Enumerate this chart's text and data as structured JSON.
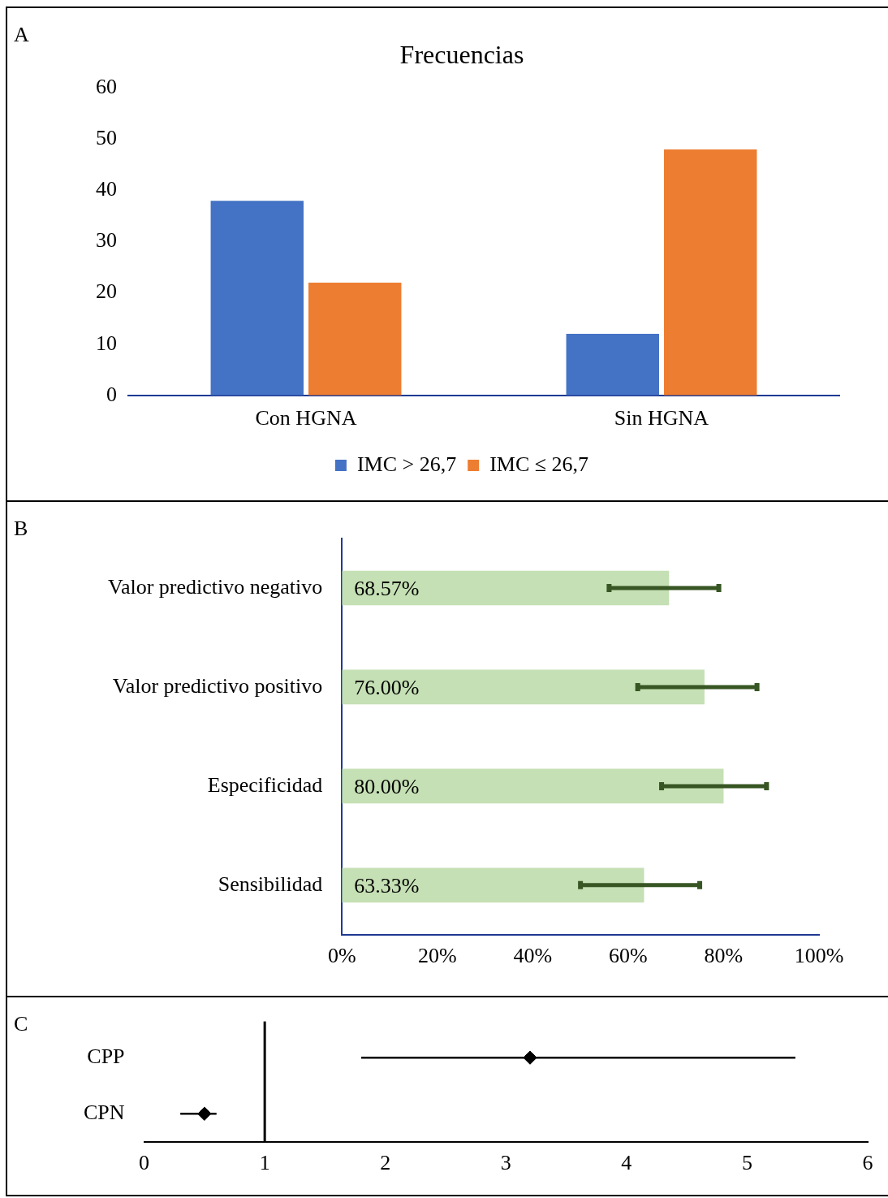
{
  "chart_data": [
    {
      "type": "bar",
      "title": "Frecuencias",
      "categories": [
        "Con HGNA",
        "Sin HGNA"
      ],
      "series": [
        {
          "name": "IMC > 26,7",
          "color": "#4472c4",
          "values": [
            38,
            12
          ]
        },
        {
          "name": "IMC ≤ 26,7",
          "color": "#ed7d31",
          "values": [
            22,
            48
          ]
        }
      ],
      "ylim": [
        0,
        60
      ],
      "yticks": [
        0,
        10,
        20,
        30,
        40,
        50,
        60
      ],
      "grid": false,
      "legend": "bottom",
      "annotations": [
        "A"
      ]
    },
    {
      "type": "bar",
      "orientation": "horizontal",
      "categories": [
        "Valor predictivo negativo",
        "Valor predictivo positivo",
        "Especificidad",
        "Sensibilidad"
      ],
      "values": [
        68.57,
        76,
        80,
        63.33
      ],
      "color": "#c5e0b4",
      "errors": [
        [
          56,
          79
        ],
        [
          62,
          87
        ],
        [
          67,
          89
        ],
        [
          50,
          75
        ]
      ],
      "value_labels": [
        "68.57%",
        "76.00%",
        "80.00%",
        "63.33%"
      ],
      "xlim": [
        0,
        100
      ],
      "xticks": [
        {
          "value": 0,
          "label": "0%"
        },
        {
          "value": 20,
          "label": "20%"
        },
        {
          "value": 40,
          "label": "40%"
        },
        {
          "value": 60,
          "label": "60%"
        },
        {
          "value": 80,
          "label": "80%"
        },
        {
          "value": 100,
          "label": "100%"
        }
      ],
      "grid": false,
      "legend": false,
      "annotations": [
        "B"
      ]
    },
    {
      "type": "scatter",
      "orientation": "horizontal",
      "categories": [
        "CPP",
        "CPN"
      ],
      "values": [
        3.2,
        0.5
      ],
      "errors": [
        [
          1.8,
          5.4
        ],
        [
          0.3,
          0.6
        ]
      ],
      "color": "#000000",
      "marker": "diamond",
      "xlim": [
        0,
        6
      ],
      "xticks": [
        0,
        1,
        2,
        3,
        4,
        5,
        6
      ],
      "ref_lines": [
        {
          "axis": "x",
          "value": 1
        }
      ],
      "grid": false,
      "legend": false,
      "annotations": [
        "C"
      ]
    }
  ]
}
